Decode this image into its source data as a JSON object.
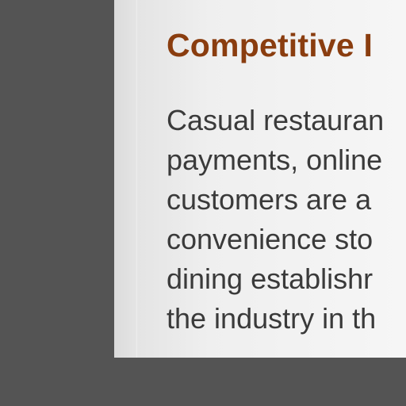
{
  "slide": {
    "heading": "Competitive I",
    "lines": [
      "Casual restauran",
      "payments, online",
      "customers are a",
      "convenience sto",
      "dining establishr",
      "the industry in th"
    ]
  },
  "colors": {
    "background": "#545454",
    "heading": "#8a3d0f",
    "body_text": "#3a3a3a"
  }
}
